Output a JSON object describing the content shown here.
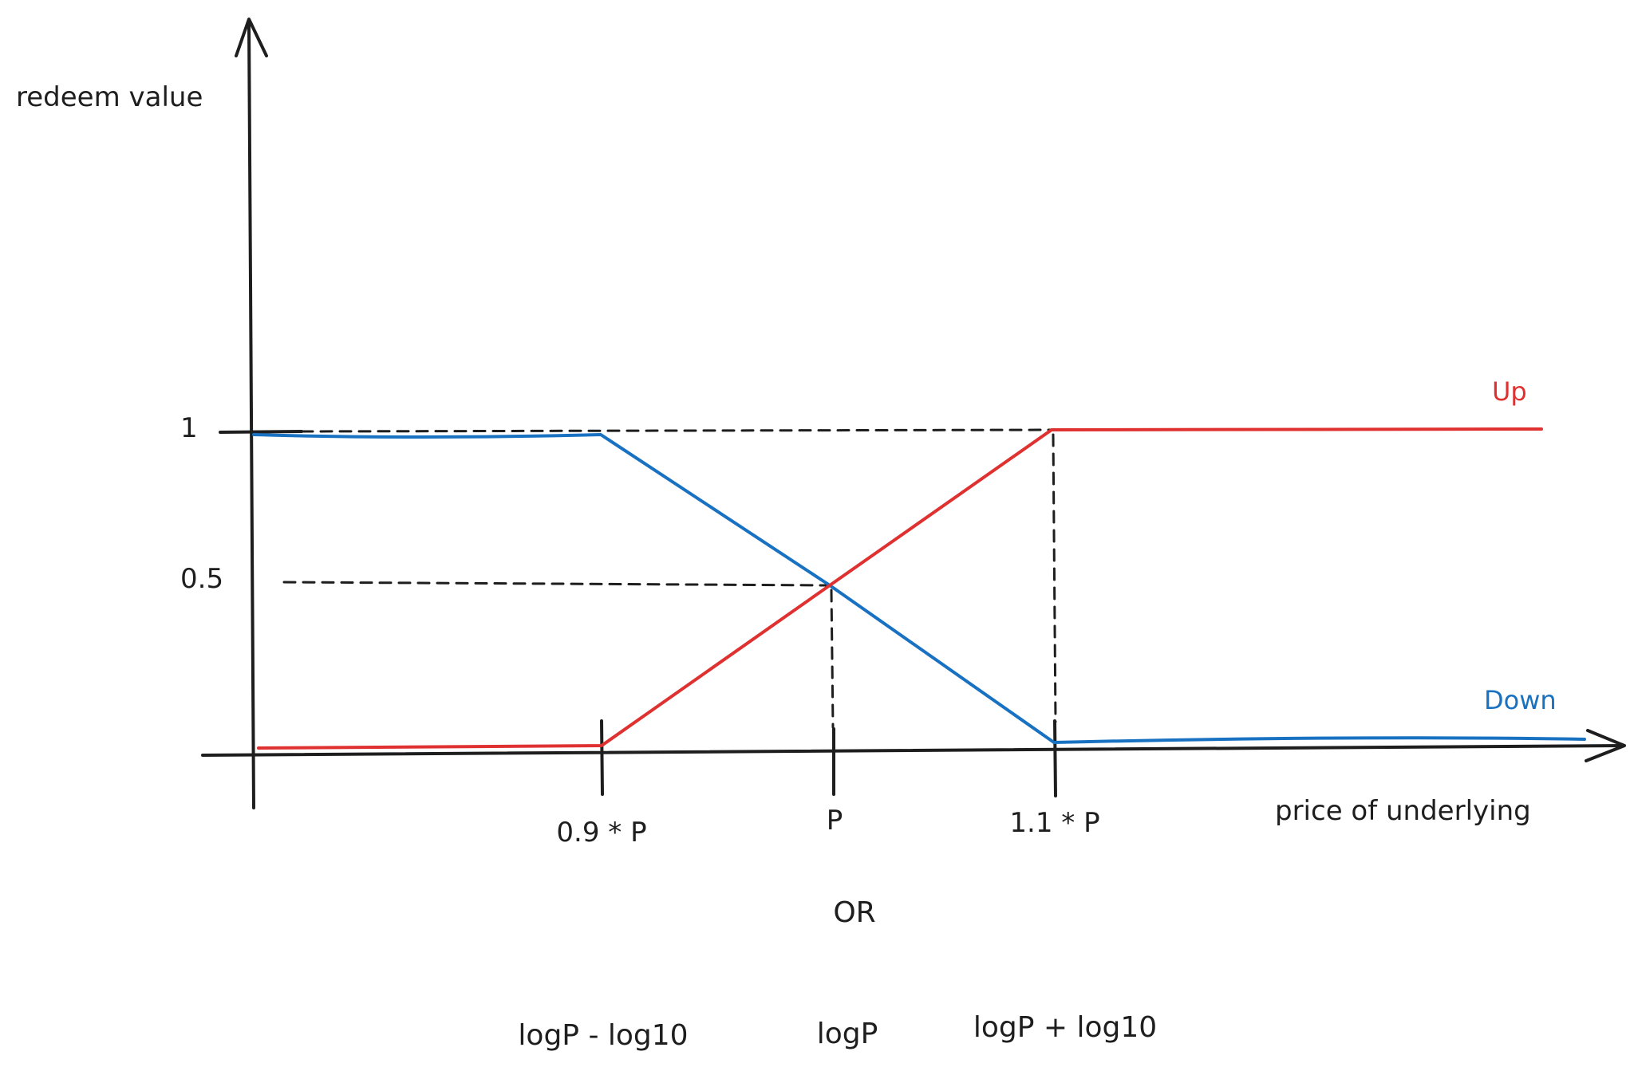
{
  "colors": {
    "axis": "#1e1e1e",
    "up": "#e03131",
    "down": "#1971c2",
    "guide": "#1e1e1e",
    "background": "#ffffff"
  },
  "chart_data": {
    "type": "line",
    "ylabel": "redeem value",
    "xlabel": "price of underlying",
    "y_ticks": [
      "1",
      "0.5"
    ],
    "x_ticks": [
      "0.9 * P",
      "P",
      "1.1 * P"
    ],
    "alt_separator": "OR",
    "alt_x_ticks": [
      "logP - log10",
      "logP",
      "logP + log10"
    ],
    "grid": false,
    "legend": "inline labels at right end of lines",
    "series": [
      {
        "name": "Up",
        "color": "#e03131",
        "points": [
          {
            "x": "0",
            "y": 0
          },
          {
            "x": "0.9 * P",
            "y": 0
          },
          {
            "x": "P",
            "y": 0.5
          },
          {
            "x": "1.1 * P",
            "y": 1
          },
          {
            "x": "end",
            "y": 1
          }
        ]
      },
      {
        "name": "Down",
        "color": "#1971c2",
        "points": [
          {
            "x": "0",
            "y": 1
          },
          {
            "x": "0.9 * P",
            "y": 1
          },
          {
            "x": "P",
            "y": 0.5
          },
          {
            "x": "1.1 * P",
            "y": 0
          },
          {
            "x": "end",
            "y": 0
          }
        ]
      }
    ],
    "guides": [
      {
        "from": "y=1 axis",
        "to": "1.1 * P",
        "style": "dashed"
      },
      {
        "from": "y=0.5 axis",
        "to": "P",
        "style": "dashed"
      },
      {
        "at": "P",
        "from_y": 0.5,
        "to_y": 0,
        "style": "dashed"
      },
      {
        "at": "1.1 * P",
        "from_y": 1,
        "to_y": 0,
        "style": "dashed"
      }
    ]
  }
}
